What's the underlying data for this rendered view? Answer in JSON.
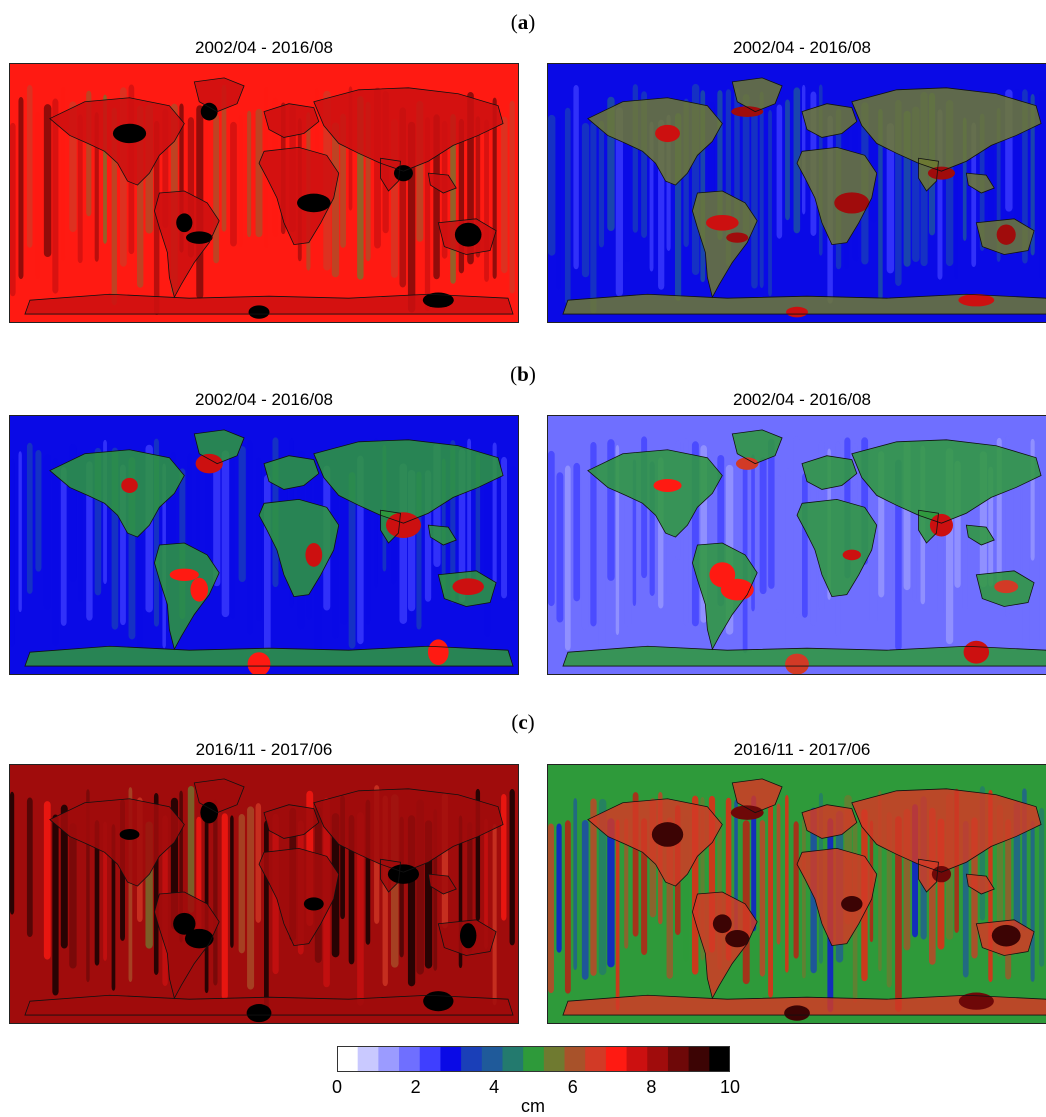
{
  "panels": [
    {
      "label": "a",
      "titles": [
        "2002/04 - 2016/08",
        "2002/04 - 2016/08"
      ]
    },
    {
      "label": "b",
      "titles": [
        "2002/04 - 2016/08",
        "2002/04 - 2016/08"
      ]
    },
    {
      "label": "c",
      "titles": [
        "2016/11 - 2017/06",
        "2016/11 - 2017/06"
      ]
    }
  ],
  "maps": [
    {
      "id": "a-left",
      "level_ocean": 7.4,
      "level_land": 9.0,
      "stripes": 0.35
    },
    {
      "id": "a-right",
      "level_ocean": 3.0,
      "level_land": 6.8,
      "stripes": 0.2
    },
    {
      "id": "b-left",
      "level_ocean": 2.7,
      "level_land": 6.4,
      "stripes": 0.15
    },
    {
      "id": "b-right",
      "level_ocean": 1.7,
      "level_land": 6.0,
      "stripes": 0.15
    },
    {
      "id": "c-left",
      "level_ocean": 8.6,
      "level_land": 9.3,
      "stripes": 0.6
    },
    {
      "id": "c-right",
      "level_ocean": 5.2,
      "level_land": 8.0,
      "stripes": 0.55
    }
  ],
  "colorbar": {
    "unit": "cm",
    "min": 0,
    "max": 10,
    "ticks": [
      "0",
      "2",
      "4",
      "6",
      "8",
      "10"
    ],
    "colors": [
      "#ffffff",
      "#c9c9ff",
      "#9b9bff",
      "#6f6fff",
      "#3f3fff",
      "#0a0ae6",
      "#1a3fb8",
      "#1f5a9a",
      "#237a6e",
      "#2e9a3a",
      "#6f7a30",
      "#a8522a",
      "#d23a26",
      "#ff1a12",
      "#cc1010",
      "#a00c0c",
      "#6e0808",
      "#3c0404",
      "#000000"
    ]
  },
  "icons": {
    "coastline": "coastline-outline"
  }
}
